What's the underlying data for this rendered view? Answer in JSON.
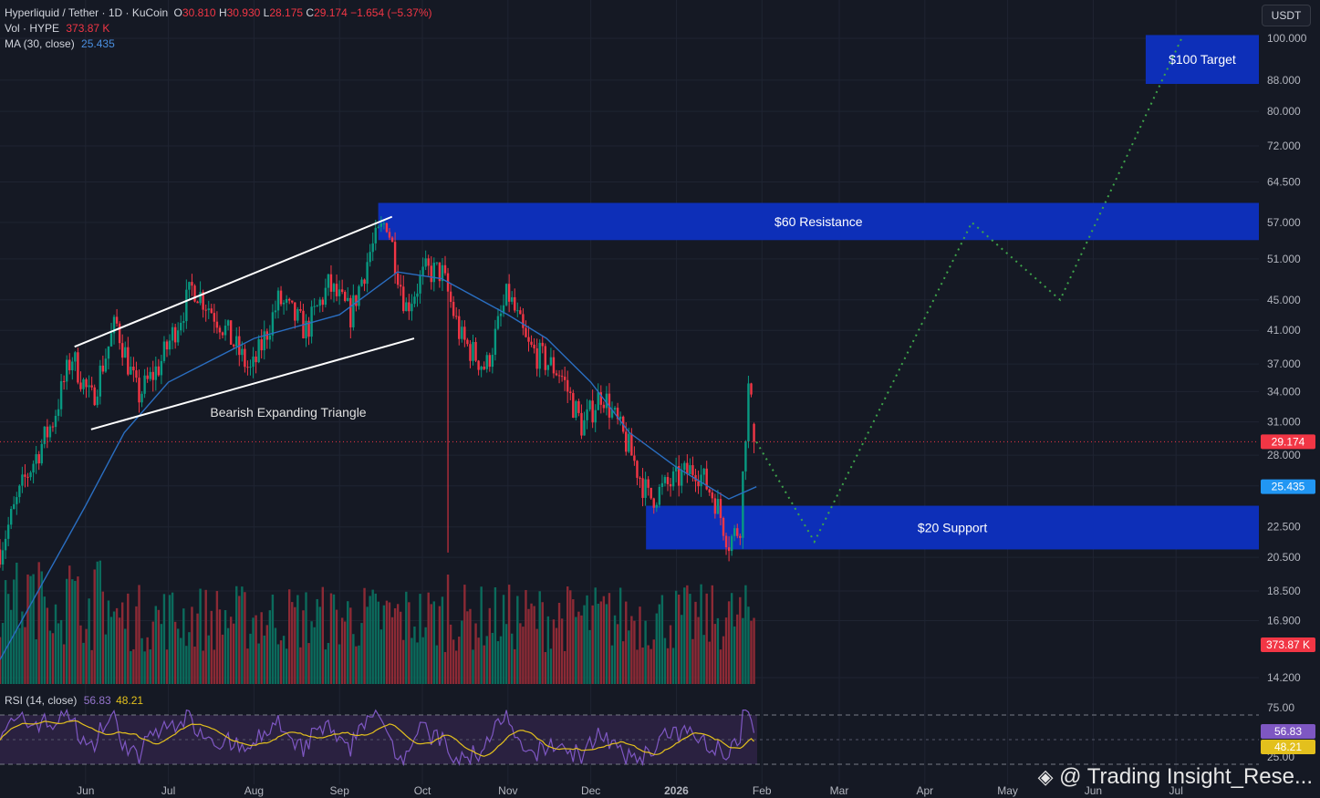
{
  "header": {
    "symbol": "Hyperliquid / Tether · 1D · KuCoin",
    "open_label": "O",
    "open": "30.810",
    "high_label": "H",
    "high": "30.930",
    "low_label": "L",
    "low": "28.175",
    "close_label": "C",
    "close": "29.174",
    "change": "−1.654 (−5.37%)",
    "vol_label": "Vol · HYPE",
    "vol_value": "373.87 K",
    "ma_label": "MA (30, close)",
    "ma_value": "25.435",
    "rsi_label": "RSI (14, close)",
    "rsi_value": "56.83",
    "rsi_ma_value": "48.21"
  },
  "currency": "USDT",
  "watermark": "@ Trading Insight_Rese...",
  "colors": {
    "background": "#151924",
    "up": "#089981",
    "down": "#f23645",
    "ma": "#2a6ec1",
    "zone": "#0d2fb8",
    "projection": "#3ea44a",
    "rsi": "#7e57c2",
    "rsi_ma": "#e3c01d"
  },
  "chart_data": {
    "type": "candlestick",
    "title": "Hyperliquid / Tether · 1D · KuCoin",
    "y_scale": "log",
    "y_ticks": [
      "100.000",
      "88.000",
      "80.000",
      "72.000",
      "64.500",
      "57.000",
      "51.000",
      "45.000",
      "41.000",
      "37.000",
      "34.000",
      "31.000",
      "28.000",
      "25.500",
      "22.500",
      "20.500",
      "18.500",
      "16.900",
      "14.200"
    ],
    "x_ticks": [
      "Jun",
      "Jul",
      "Aug",
      "Sep",
      "Oct",
      "Nov",
      "Dec",
      "2026",
      "Feb",
      "Mar",
      "Apr",
      "May",
      "Jun",
      "Jul"
    ],
    "price_path": [
      [
        "2025-05-01",
        21
      ],
      [
        "2025-05-10",
        26
      ],
      [
        "2025-05-20",
        31
      ],
      [
        "2025-05-27",
        38
      ],
      [
        "2025-06-03",
        33
      ],
      [
        "2025-06-12",
        42
      ],
      [
        "2025-06-20",
        33.5
      ],
      [
        "2025-06-28",
        37
      ],
      [
        "2025-07-10",
        47
      ],
      [
        "2025-07-20",
        42
      ],
      [
        "2025-07-31",
        36
      ],
      [
        "2025-08-10",
        45
      ],
      [
        "2025-08-20",
        41
      ],
      [
        "2025-08-28",
        47
      ],
      [
        "2025-09-05",
        43
      ],
      [
        "2025-09-12",
        52
      ],
      [
        "2025-09-18",
        57.5
      ],
      [
        "2025-09-25",
        44
      ],
      [
        "2025-10-02",
        49
      ],
      [
        "2025-10-08",
        49
      ],
      [
        "2025-10-15",
        40
      ],
      [
        "2025-10-24",
        36.5
      ],
      [
        "2025-11-01",
        46
      ],
      [
        "2025-11-08",
        39
      ],
      [
        "2025-11-20",
        36
      ],
      [
        "2025-11-28",
        30.5
      ],
      [
        "2025-12-05",
        34
      ],
      [
        "2025-12-15",
        28.5
      ],
      [
        "2025-12-22",
        24.5
      ],
      [
        "2026-01-01",
        26
      ],
      [
        "2026-01-08",
        27
      ],
      [
        "2026-01-15",
        24.5
      ],
      [
        "2026-01-20",
        21.5
      ],
      [
        "2026-01-24",
        22.5
      ],
      [
        "2026-01-27",
        34.5
      ],
      [
        "2026-01-30",
        29.174
      ]
    ],
    "ma_path": [
      [
        "2025-05-01",
        15
      ],
      [
        "2025-06-01",
        24
      ],
      [
        "2025-06-15",
        30
      ],
      [
        "2025-07-01",
        35
      ],
      [
        "2025-08-01",
        40
      ],
      [
        "2025-09-01",
        43
      ],
      [
        "2025-09-22",
        49
      ],
      [
        "2025-10-08",
        48
      ],
      [
        "2025-11-01",
        43
      ],
      [
        "2025-11-15",
        40
      ],
      [
        "2025-12-01",
        35
      ],
      [
        "2025-12-15",
        30
      ],
      [
        "2026-01-01",
        27
      ],
      [
        "2026-01-20",
        24.5
      ],
      [
        "2026-01-30",
        25.435
      ]
    ],
    "projection_path": [
      [
        "2026-01-30",
        29.174
      ],
      [
        "2026-02-20",
        21.5
      ],
      [
        "2026-04-18",
        57
      ],
      [
        "2026-05-20",
        45
      ],
      [
        "2026-07-03",
        100
      ]
    ],
    "last_price": "29.174",
    "ma_last": "25.435",
    "volume_last": "373.87 K",
    "zones": [
      {
        "label": "$60 Resistance",
        "low": 54,
        "high": 60.5,
        "from": "2025-09-15",
        "to": "2026-07-31"
      },
      {
        "label": "$20 Support",
        "low": 21,
        "high": 24,
        "from": "2025-12-21",
        "to": "2026-07-31"
      },
      {
        "label": "$100 Target",
        "low": 87,
        "high": 101,
        "from": "2026-06-20",
        "to": "2026-07-31"
      }
    ],
    "pattern": {
      "label": "Bearish Expanding Triangle",
      "upper": [
        [
          "2025-05-28",
          39
        ],
        [
          "2025-09-20",
          58
        ]
      ],
      "lower": [
        [
          "2025-06-03",
          30.3
        ],
        [
          "2025-09-28",
          40
        ]
      ]
    },
    "rsi": {
      "label": "RSI (14, close)",
      "value": "56.83",
      "ma_value": "48.21",
      "levels": [
        "75.00",
        "25.00"
      ]
    }
  }
}
